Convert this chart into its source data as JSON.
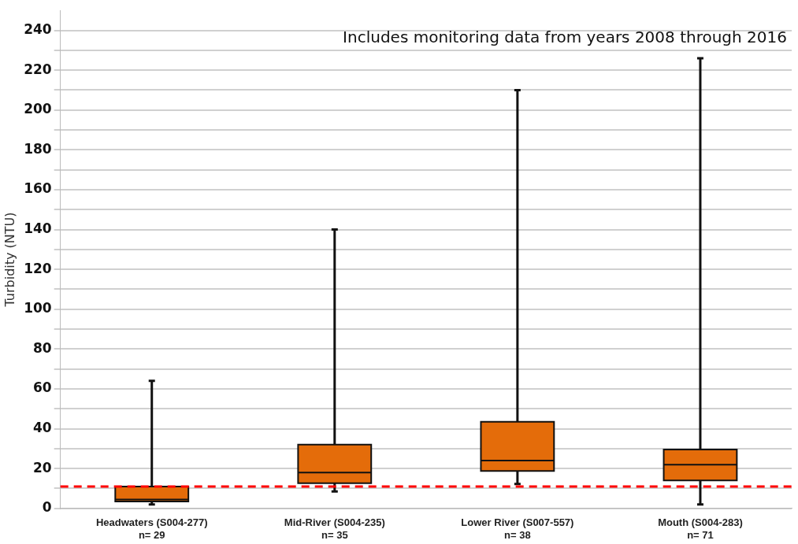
{
  "chart_data": {
    "type": "box",
    "ylabel": "Turbidity (NTU)",
    "categories": [
      "Headwaters (S004-277)\nn= 29",
      "Mid-River (S004-235)\nn= 35",
      "Lower River (S007-557)\nn= 38",
      "Mouth (S004-283)\nn= 71"
    ],
    "color": "#e46c0a",
    "boxes": [
      {
        "low": 2,
        "q1": 3.5,
        "median": 4.5,
        "q3": 11,
        "high": 64
      },
      {
        "low": 8.5,
        "q1": 12.7,
        "median": 18,
        "q3": 32,
        "high": 140
      },
      {
        "low": 12.3,
        "q1": 18.8,
        "median": 24,
        "q3": 43.5,
        "high": 210
      },
      {
        "low": 2,
        "q1": 14,
        "median": 22,
        "q3": 29.6,
        "high": 226
      }
    ],
    "ylim": [
      0,
      250
    ],
    "yticks": [
      0,
      {
        "value": 10,
        "label": null
      },
      20,
      {
        "value": 30,
        "label": null
      },
      40,
      {
        "value": 50,
        "label": null
      },
      60,
      {
        "value": 70,
        "label": null
      },
      80,
      {
        "value": 90,
        "label": null
      },
      100,
      {
        "value": 110,
        "label": null
      },
      120,
      {
        "value": 130,
        "label": null
      },
      140,
      {
        "value": 150,
        "label": null
      },
      160,
      {
        "value": 170,
        "label": null
      },
      180,
      {
        "value": 190,
        "label": null
      },
      200,
      {
        "value": 210,
        "label": null
      },
      220,
      {
        "value": 230,
        "label": null
      },
      240
    ],
    "grid": "y",
    "ref_lines": [
      {
        "axis": "y",
        "value": 11,
        "color": "#ff0000",
        "line_style": "dashed"
      }
    ],
    "annotations": [
      "Includes monitoring data from years 2008 through 2016"
    ]
  }
}
